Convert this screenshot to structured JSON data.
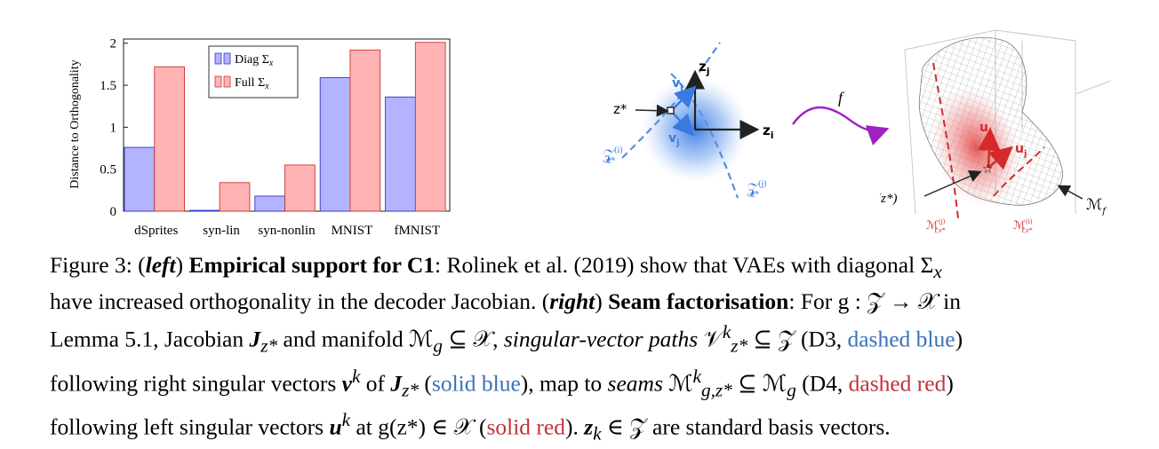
{
  "chart_data": {
    "type": "bar",
    "categories": [
      "dSprites",
      "syn-lin",
      "syn-nonlin",
      "MNIST",
      "fMNIST"
    ],
    "series": [
      {
        "name": "Diag Σ",
        "name_sub": "x",
        "color": "#b3b3ff",
        "values": [
          0.76,
          0.01,
          0.18,
          1.59,
          1.36
        ]
      },
      {
        "name": "Full Σ",
        "name_sub": "x",
        "color": "#ffb3b3",
        "values": [
          1.72,
          0.34,
          0.55,
          1.92,
          2.01
        ]
      }
    ],
    "ylabel": "Distance to Orthogonality",
    "ylim": [
      0,
      2.05
    ],
    "yticks": [
      "0",
      "0.5",
      "1",
      "1.5",
      "2"
    ],
    "ytick_values": [
      0,
      0.5,
      1,
      1.5,
      2
    ],
    "legend_position": "top-center"
  },
  "diagram": {
    "z_star": "z*",
    "z_j": "z",
    "z_j_sub": "j",
    "z_i": "z",
    "z_i_sub": "i",
    "v_i": "v",
    "v_i_sub": "i",
    "v_j": "v",
    "v_j_sub": "j",
    "path_i": "𝒵",
    "path_i_sup": "(i)",
    "path_i_sub": "z*",
    "path_j": "𝒵",
    "path_j_sup": "(j)",
    "path_j_sub": "z*",
    "map_label": "f",
    "f_z_star": "f(z*)",
    "u_i": "u",
    "u_i_sub": "i",
    "u_j": "u",
    "u_j_sub": "j",
    "manifold": "ℳ",
    "manifold_sub": "f",
    "seam_j": "ℳ",
    "seam_j_sup": "(j)",
    "seam_j_sub": "f,v*",
    "seam_i": "ℳ",
    "seam_i_sup": "(i)",
    "seam_i_sub": "f,v*"
  },
  "caption": {
    "p1": "Figure 3: (",
    "left": "left",
    "p2": ") ",
    "c1": "Empirical support for C1",
    "p3": ": Rolinek et al. (2019) show that VAEs with diagonal Σ",
    "p3_sub": "x",
    "p4": "have increased orthogonality in the decoder Jacobian. (",
    "right": "right",
    "p5": ") ",
    "seam": "Seam factorisation",
    "p6": ": For g : 𝒵 → 𝒳 in",
    "p7": "Lemma 5.1, Jacobian ",
    "J": "J",
    "J_sub": "z*",
    "p8": " and manifold ℳ",
    "p8_sub": "g",
    "p9": " ⊆ 𝒳, ",
    "svp": "singular-vector paths",
    "p10": " 𝒱",
    "p10_sup": "k",
    "p10_sub": "z*",
    "p11": " ⊆ 𝒵 (D3, ",
    "dashed_blue": "dashed blue",
    "p12": ")",
    "p13": "following right singular vectors ",
    "v": "v",
    "v_sup": "k",
    "p14": " of ",
    "J2": "J",
    "J2_sub": "z*",
    "p15": " (",
    "solid_blue": "solid blue",
    "p16": "), map to ",
    "seams": "seams",
    "p17": " ℳ",
    "p17_sup": "k",
    "p17_sub": "g,z*",
    "p18": " ⊆ ℳ",
    "p18_sub": "g",
    "p19": " (D4, ",
    "dashed_red": "dashed red",
    "p20": ")",
    "p21": "following left singular vectors ",
    "u": "u",
    "u_sup": "k",
    "p22": " at g(z*) ∈ 𝒳 (",
    "solid_red": "solid red",
    "p23": "). ",
    "zk": "z",
    "zk_sub": "k",
    "p24": " ∈ 𝒵 are standard basis vectors."
  }
}
